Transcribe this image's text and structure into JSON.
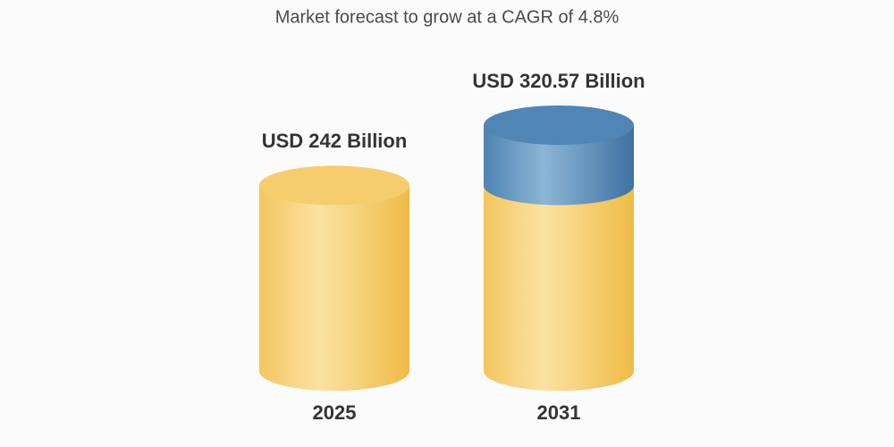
{
  "chart_data": {
    "type": "cylinder",
    "title": "Market forecast to grow at a CAGR of 4.8%",
    "categories": [
      "2025",
      "2031"
    ],
    "values": [
      242,
      320.57
    ],
    "value_labels": [
      "USD 242 Billion",
      "USD 320.57 Billion"
    ],
    "base_color": "#f2c45c",
    "growth_color": "#4a7fae"
  }
}
